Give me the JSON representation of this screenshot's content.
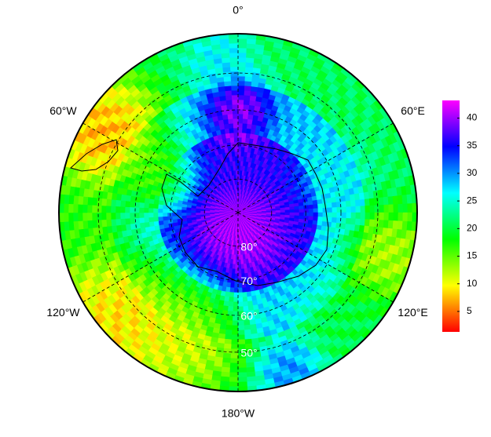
{
  "chart_data": {
    "type": "polar-map",
    "lat_lim": [
      -90,
      -40
    ],
    "meridians": [
      {
        "value": 0,
        "label": "0°"
      },
      {
        "value": 60,
        "label": "60°E"
      },
      {
        "value": 120,
        "label": "120°E"
      },
      {
        "value": 180,
        "label": "180°W"
      },
      {
        "value": -120,
        "label": "120°W"
      },
      {
        "value": -60,
        "label": "60°W"
      }
    ],
    "parallels": [
      {
        "value": -80,
        "label": "80°"
      },
      {
        "value": -70,
        "label": "70°"
      },
      {
        "value": -60,
        "label": "60°"
      },
      {
        "value": -50,
        "label": "50°"
      }
    ],
    "colorbar": {
      "lim": [
        1.3,
        43.2
      ],
      "ticks": [
        5,
        10,
        15,
        20,
        25,
        30,
        35,
        40
      ],
      "colormap": [
        "#ff0000",
        "#ffff00",
        "#00ff00",
        "#00ffff",
        "#0000ff",
        "#ff00ff"
      ]
    }
  }
}
